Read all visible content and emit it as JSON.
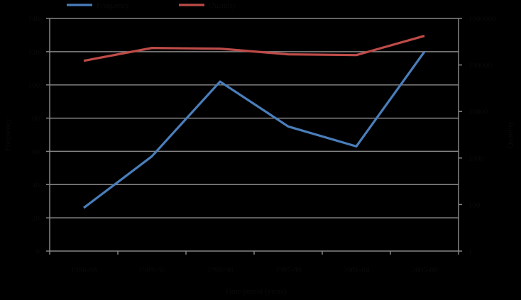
{
  "chart_data": {
    "type": "line",
    "title": "",
    "categories": [
      "1986-88",
      "1989-91",
      "1992-96",
      "1997-00",
      "2001-04",
      "2005-08"
    ],
    "xlabel": "Time period (years)",
    "ylabel": "Frequency",
    "y2label": "Quantity",
    "ylim": [
      0,
      140
    ],
    "yticks": [
      0,
      20,
      40,
      60,
      80,
      100,
      120,
      140
    ],
    "y2scale": "log",
    "y2ticks": [
      "1",
      "10",
      "100",
      "1000",
      "10000",
      "100000",
      "1000000"
    ],
    "y2ticks_visible": [
      "1",
      "100",
      "1000",
      "10000",
      "100000",
      "1000000"
    ],
    "grid": true,
    "legend_position": "top",
    "series": [
      {
        "name": "Frequency",
        "axis": "left",
        "color": "#4a7ebb",
        "values": [
          26,
          57,
          102,
          75,
          63,
          120
        ]
      },
      {
        "name": "Quantity",
        "axis": "right",
        "color": "#be4b48",
        "values": [
          123000,
          232000,
          224000,
          169000,
          163000,
          422000
        ]
      }
    ]
  },
  "legend": {
    "items": [
      {
        "label": "Frequency",
        "color": "#4a7ebb"
      },
      {
        "label": "Quantity",
        "color": "#be4b48"
      }
    ]
  },
  "axes": {
    "left_ticks": [
      "0",
      "20",
      "40",
      "60",
      "80",
      "100",
      "120",
      "140"
    ],
    "right_ticks": [
      "1",
      "100",
      "1000",
      "10000",
      "100000",
      "1000000"
    ],
    "x_ticks": [
      "1986-88",
      "1989-91",
      "1992-96",
      "1997-00",
      "2001-04",
      "2005-08"
    ],
    "x_title": "Time period (years)",
    "left_title": "Frequency",
    "right_title": "Quantity"
  },
  "colors": {
    "background": "#000000",
    "grid": "#868686",
    "frequency": "#4a7ebb",
    "quantity": "#be4b48"
  }
}
